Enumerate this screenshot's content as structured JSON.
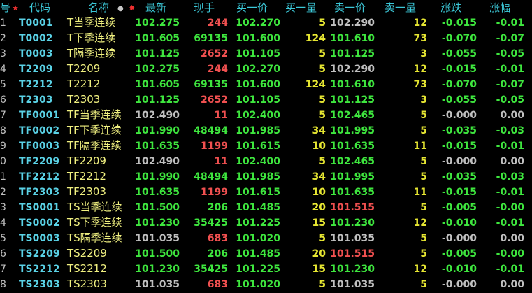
{
  "header": {
    "idx": "号",
    "star_icon": "★",
    "code": "代码",
    "name": "名称",
    "circle_icon": "●",
    "gear_icon": "✸",
    "last": "最新",
    "vol": "现手",
    "bid": "买一价",
    "bidvol": "买一量",
    "ask": "卖一价",
    "askvol": "卖一量",
    "chg": "涨跌",
    "pct": "涨幅"
  },
  "colors": {
    "green": "#3ee63e",
    "gray": "#c0c0c0",
    "red": "#f05050",
    "yellow": "#e6e632",
    "cyan": "#5ad2e6",
    "header": "#3cc8d8",
    "divider": "#a01818"
  },
  "rows": [
    {
      "idx": "1",
      "code": "T0001",
      "name": "T当季连续",
      "last": "102.275",
      "lc": "g",
      "vol": "244",
      "vc": "r",
      "bid": "102.270",
      "bc": "g",
      "bidvol": "5",
      "ask": "102.290",
      "ac": "w",
      "askvol": "12",
      "chg": "-0.015",
      "cc": "g",
      "pct": "-0.01",
      "pc": "g"
    },
    {
      "idx": "2",
      "code": "T0002",
      "name": "T下季连续",
      "last": "101.605",
      "lc": "g",
      "vol": "69135",
      "vc": "g",
      "bid": "101.600",
      "bc": "g",
      "bidvol": "124",
      "ask": "101.610",
      "ac": "g",
      "askvol": "73",
      "chg": "-0.070",
      "cc": "g",
      "pct": "-0.07",
      "pc": "g"
    },
    {
      "idx": "3",
      "code": "T0003",
      "name": "T隔季连续",
      "last": "101.125",
      "lc": "g",
      "vol": "2652",
      "vc": "r",
      "bid": "101.105",
      "bc": "g",
      "bidvol": "5",
      "ask": "101.125",
      "ac": "g",
      "askvol": "3",
      "chg": "-0.055",
      "cc": "g",
      "pct": "-0.05",
      "pc": "g"
    },
    {
      "idx": "4",
      "code": "T2209",
      "name": "T2209",
      "last": "102.275",
      "lc": "g",
      "vol": "244",
      "vc": "r",
      "bid": "102.270",
      "bc": "g",
      "bidvol": "5",
      "ask": "102.290",
      "ac": "w",
      "askvol": "12",
      "chg": "-0.015",
      "cc": "g",
      "pct": "-0.01",
      "pc": "g"
    },
    {
      "idx": "5",
      "code": "T2212",
      "name": "T2212",
      "last": "101.605",
      "lc": "g",
      "vol": "69135",
      "vc": "g",
      "bid": "101.600",
      "bc": "g",
      "bidvol": "124",
      "ask": "101.610",
      "ac": "g",
      "askvol": "73",
      "chg": "-0.070",
      "cc": "g",
      "pct": "-0.07",
      "pc": "g"
    },
    {
      "idx": "6",
      "code": "T2303",
      "name": "T2303",
      "last": "101.125",
      "lc": "g",
      "vol": "2652",
      "vc": "r",
      "bid": "101.105",
      "bc": "g",
      "bidvol": "5",
      "ask": "101.125",
      "ac": "g",
      "askvol": "3",
      "chg": "-0.055",
      "cc": "g",
      "pct": "-0.05",
      "pc": "g"
    },
    {
      "idx": "7",
      "code": "TF0001",
      "name": "TF当季连续",
      "last": "102.490",
      "lc": "w",
      "vol": "11",
      "vc": "r",
      "bid": "102.400",
      "bc": "g",
      "bidvol": "5",
      "ask": "102.465",
      "ac": "g",
      "askvol": "5",
      "chg": "-0.000",
      "cc": "w",
      "pct": "0.00",
      "pc": "w"
    },
    {
      "idx": "8",
      "code": "TF0002",
      "name": "TF下季连续",
      "last": "101.990",
      "lc": "g",
      "vol": "48494",
      "vc": "g",
      "bid": "101.985",
      "bc": "g",
      "bidvol": "34",
      "ask": "101.995",
      "ac": "g",
      "askvol": "5",
      "chg": "-0.035",
      "cc": "g",
      "pct": "-0.03",
      "pc": "g"
    },
    {
      "idx": "9",
      "code": "TF0003",
      "name": "TF隔季连续",
      "last": "101.635",
      "lc": "g",
      "vol": "1199",
      "vc": "r",
      "bid": "101.615",
      "bc": "g",
      "bidvol": "10",
      "ask": "101.635",
      "ac": "g",
      "askvol": "11",
      "chg": "-0.015",
      "cc": "g",
      "pct": "-0.01",
      "pc": "g"
    },
    {
      "idx": "0",
      "code": "TF2209",
      "name": "TF2209",
      "last": "102.490",
      "lc": "w",
      "vol": "11",
      "vc": "r",
      "bid": "102.400",
      "bc": "g",
      "bidvol": "5",
      "ask": "102.465",
      "ac": "g",
      "askvol": "5",
      "chg": "-0.000",
      "cc": "w",
      "pct": "0.00",
      "pc": "w"
    },
    {
      "idx": "1",
      "code": "TF2212",
      "name": "TF2212",
      "last": "101.990",
      "lc": "g",
      "vol": "48494",
      "vc": "g",
      "bid": "101.985",
      "bc": "g",
      "bidvol": "34",
      "ask": "101.995",
      "ac": "g",
      "askvol": "5",
      "chg": "-0.035",
      "cc": "g",
      "pct": "-0.03",
      "pc": "g"
    },
    {
      "idx": "2",
      "code": "TF2303",
      "name": "TF2303",
      "last": "101.635",
      "lc": "g",
      "vol": "1199",
      "vc": "r",
      "bid": "101.615",
      "bc": "g",
      "bidvol": "10",
      "ask": "101.635",
      "ac": "g",
      "askvol": "11",
      "chg": "-0.015",
      "cc": "g",
      "pct": "-0.01",
      "pc": "g"
    },
    {
      "idx": "3",
      "code": "TS0001",
      "name": "TS当季连续",
      "last": "101.500",
      "lc": "g",
      "vol": "206",
      "vc": "g",
      "bid": "101.485",
      "bc": "g",
      "bidvol": "20",
      "ask": "101.515",
      "ac": "r",
      "askvol": "5",
      "chg": "-0.005",
      "cc": "g",
      "pct": "-0.00",
      "pc": "g"
    },
    {
      "idx": "4",
      "code": "TS0002",
      "name": "TS下季连续",
      "last": "101.230",
      "lc": "g",
      "vol": "35425",
      "vc": "g",
      "bid": "101.225",
      "bc": "g",
      "bidvol": "15",
      "ask": "101.230",
      "ac": "g",
      "askvol": "12",
      "chg": "-0.010",
      "cc": "g",
      "pct": "-0.01",
      "pc": "g"
    },
    {
      "idx": "5",
      "code": "TS0003",
      "name": "TS隔季连续",
      "last": "101.035",
      "lc": "w",
      "vol": "683",
      "vc": "r",
      "bid": "101.020",
      "bc": "g",
      "bidvol": "5",
      "ask": "101.035",
      "ac": "w",
      "askvol": "5",
      "chg": "-0.000",
      "cc": "w",
      "pct": "0.00",
      "pc": "w"
    },
    {
      "idx": "6",
      "code": "TS2209",
      "name": "TS2209",
      "last": "101.500",
      "lc": "g",
      "vol": "206",
      "vc": "g",
      "bid": "101.485",
      "bc": "g",
      "bidvol": "20",
      "ask": "101.515",
      "ac": "r",
      "askvol": "5",
      "chg": "-0.005",
      "cc": "g",
      "pct": "-0.00",
      "pc": "g"
    },
    {
      "idx": "7",
      "code": "TS2212",
      "name": "TS2212",
      "last": "101.230",
      "lc": "g",
      "vol": "35425",
      "vc": "g",
      "bid": "101.225",
      "bc": "g",
      "bidvol": "15",
      "ask": "101.230",
      "ac": "g",
      "askvol": "12",
      "chg": "-0.010",
      "cc": "g",
      "pct": "-0.01",
      "pc": "g"
    },
    {
      "idx": "8",
      "code": "TS2303",
      "name": "TS2303",
      "last": "101.035",
      "lc": "w",
      "vol": "683",
      "vc": "r",
      "bid": "101.020",
      "bc": "g",
      "bidvol": "5",
      "ask": "101.035",
      "ac": "w",
      "askvol": "5",
      "chg": "-0.000",
      "cc": "w",
      "pct": "0.00",
      "pc": "w"
    }
  ]
}
